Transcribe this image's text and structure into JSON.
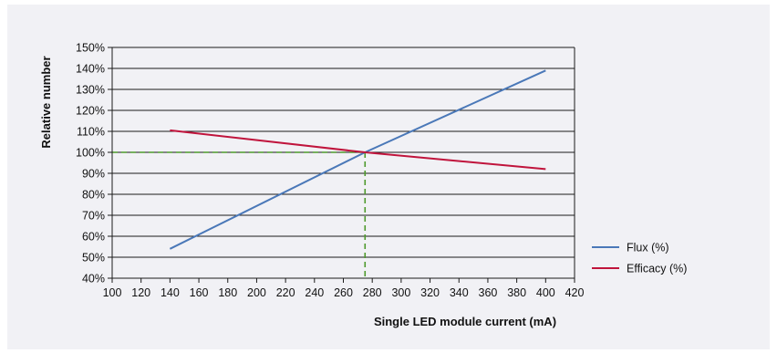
{
  "chart_data": {
    "type": "line",
    "xlabel": "Single LED module current (mA)",
    "ylabel": "Relative number",
    "xlim": [
      100,
      420
    ],
    "ylim": [
      40,
      150
    ],
    "x_ticks": [
      "100",
      "120",
      "140",
      "160",
      "180",
      "200",
      "220",
      "240",
      "260",
      "280",
      "300",
      "320",
      "340",
      "360",
      "380",
      "400",
      "420"
    ],
    "y_ticks": [
      "40%",
      "50%",
      "60%",
      "70%",
      "80%",
      "90%",
      "100%",
      "110%",
      "120%",
      "130%",
      "140%",
      "150%"
    ],
    "grid": "horizontal",
    "legend_position": "right",
    "series": [
      {
        "name": "Flux (%)",
        "color": "#4a78b8",
        "x": [
          140,
          275,
          400
        ],
        "y": [
          54,
          100,
          139
        ]
      },
      {
        "name": "Efficacy (%)",
        "color": "#c0143c",
        "x": [
          140,
          275,
          400
        ],
        "y": [
          110.5,
          100,
          92
        ]
      }
    ],
    "reference_lines": {
      "color": "#4e9a2c",
      "point": {
        "x": 275,
        "y": 100
      }
    }
  }
}
